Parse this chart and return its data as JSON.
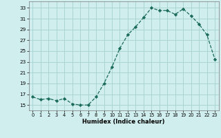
{
  "x": [
    0,
    1,
    2,
    3,
    4,
    5,
    6,
    7,
    8,
    9,
    10,
    11,
    12,
    13,
    14,
    15,
    16,
    17,
    18,
    19,
    20,
    21,
    22,
    23
  ],
  "y": [
    16.5,
    16.0,
    16.2,
    15.8,
    16.2,
    15.2,
    15.0,
    15.0,
    16.5,
    19.0,
    22.0,
    25.5,
    28.0,
    29.5,
    31.2,
    33.0,
    32.5,
    32.5,
    31.8,
    32.8,
    31.5,
    30.0,
    28.0,
    23.5
  ],
  "line_color": "#1a6b5a",
  "marker_color": "#1a6b5a",
  "bg_color": "#d0eeee",
  "grid_color": "#aad4d4",
  "xlabel": "Humidex (Indice chaleur)",
  "ylabel_ticks": [
    15,
    17,
    19,
    21,
    23,
    25,
    27,
    29,
    31,
    33
  ],
  "ylim": [
    14.0,
    34.2
  ],
  "xlim": [
    -0.5,
    23.5
  ]
}
